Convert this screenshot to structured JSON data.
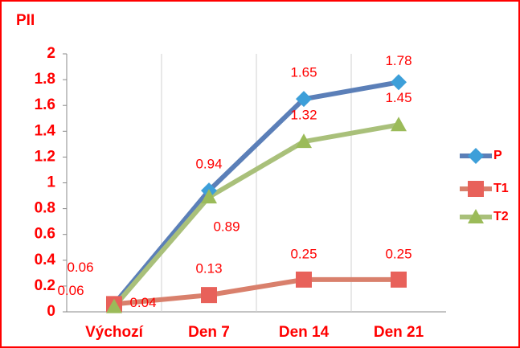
{
  "chart_data": {
    "type": "line",
    "title": "PII",
    "categories": [
      "Výchozí",
      "Den 7",
      "Den 14",
      "Den 21"
    ],
    "series": [
      {
        "name": "P",
        "color": "#5b7fb8",
        "marker_color": "#3d9fd9",
        "marker": "diamond",
        "values": [
          0.06,
          0.94,
          1.65,
          1.78
        ]
      },
      {
        "name": "T1",
        "color": "#d9806c",
        "marker_color": "#e8615a",
        "marker": "square",
        "values": [
          0.06,
          0.13,
          0.25,
          0.25
        ]
      },
      {
        "name": "T2",
        "color": "#a9c07a",
        "marker_color": "#9bbb59",
        "marker": "triangle",
        "values": [
          0.04,
          0.89,
          1.32,
          1.45
        ]
      }
    ],
    "ylim": [
      0,
      2
    ],
    "yticks": [
      0,
      0.2,
      0.4,
      0.6,
      0.8,
      1,
      1.2,
      1.4,
      1.6,
      1.8,
      2
    ],
    "xgrid": true,
    "legend": "right"
  }
}
